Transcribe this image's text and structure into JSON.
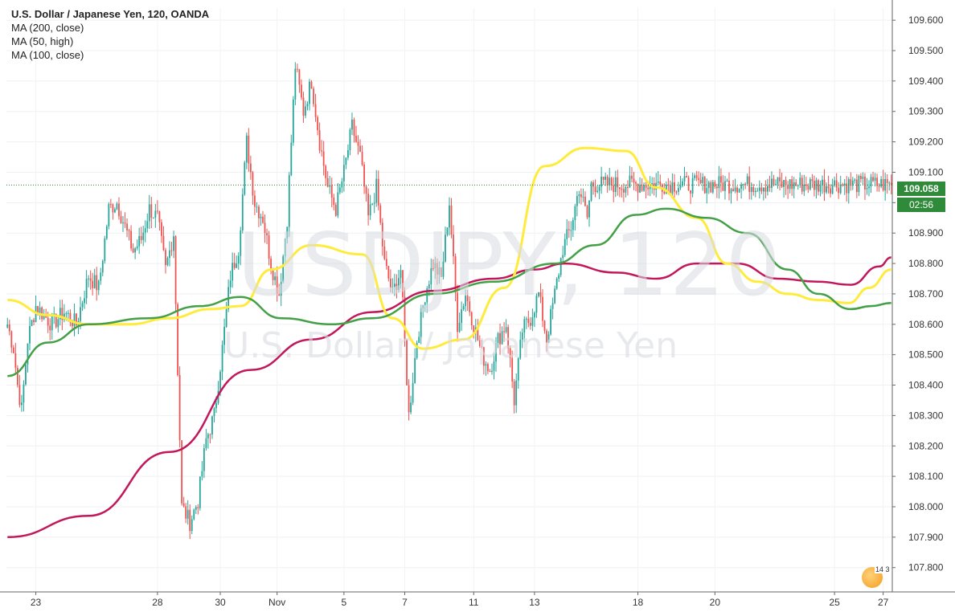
{
  "header": {
    "title": "U.S. Dollar / Japanese Yen, 120, OANDA",
    "studies": [
      "MA (200, close)",
      "MA (50, high)",
      "MA (100, close)"
    ]
  },
  "watermark": {
    "symbol": "USDJPY, 120",
    "name": "U.S. Dollar / Japanese Yen"
  },
  "price_tag": {
    "value": "109.058",
    "countdown": "02:56"
  },
  "colors": {
    "up": "#26a69a",
    "down": "#ef5350",
    "ma200": "#c2185b",
    "ma50": "#ffeb3b",
    "ma100": "#43a047",
    "price_line": "#2f8a3a"
  },
  "logo": {
    "badge": "14 3",
    "icon": "tradingview-flag-icon"
  },
  "chart_data": {
    "type": "candlestick",
    "ylim": [
      107.72,
      109.64
    ],
    "yticks": [
      "109.600",
      "109.500",
      "109.400",
      "109.300",
      "109.200",
      "109.100",
      "109.000",
      "108.900",
      "108.800",
      "108.700",
      "108.600",
      "108.500",
      "108.400",
      "108.300",
      "108.200",
      "108.100",
      "108.000",
      "107.900",
      "107.800"
    ],
    "xtick_labels": [
      "23",
      "28",
      "30",
      "Nov",
      "5",
      "7",
      "11",
      "13",
      "18",
      "20",
      "25",
      "27"
    ],
    "last_price": 109.058,
    "anchors": [
      {
        "i": 0,
        "p": 108.6
      },
      {
        "i": 3,
        "p": 108.52
      },
      {
        "i": 5,
        "p": 108.4
      },
      {
        "i": 7,
        "p": 108.32
      },
      {
        "i": 10,
        "p": 108.55
      },
      {
        "i": 14,
        "p": 108.66
      },
      {
        "i": 18,
        "p": 108.63
      },
      {
        "i": 22,
        "p": 108.6
      },
      {
        "i": 28,
        "p": 108.64
      },
      {
        "i": 34,
        "p": 108.6
      },
      {
        "i": 40,
        "p": 108.76
      },
      {
        "i": 45,
        "p": 108.72
      },
      {
        "i": 50,
        "p": 108.98
      },
      {
        "i": 54,
        "p": 109.0
      },
      {
        "i": 58,
        "p": 108.92
      },
      {
        "i": 62,
        "p": 108.84
      },
      {
        "i": 66,
        "p": 108.88
      },
      {
        "i": 70,
        "p": 108.98
      },
      {
        "i": 74,
        "p": 108.95
      },
      {
        "i": 78,
        "p": 108.78
      },
      {
        "i": 82,
        "p": 108.9
      },
      {
        "i": 86,
        "p": 108.0
      },
      {
        "i": 90,
        "p": 107.95
      },
      {
        "i": 94,
        "p": 108.02
      },
      {
        "i": 98,
        "p": 108.22
      },
      {
        "i": 102,
        "p": 108.3
      },
      {
        "i": 106,
        "p": 108.52
      },
      {
        "i": 110,
        "p": 108.76
      },
      {
        "i": 114,
        "p": 108.85
      },
      {
        "i": 118,
        "p": 109.2
      },
      {
        "i": 122,
        "p": 109.0
      },
      {
        "i": 126,
        "p": 108.95
      },
      {
        "i": 130,
        "p": 108.8
      },
      {
        "i": 134,
        "p": 108.7
      },
      {
        "i": 138,
        "p": 108.95
      },
      {
        "i": 142,
        "p": 109.45
      },
      {
        "i": 146,
        "p": 109.3
      },
      {
        "i": 150,
        "p": 109.4
      },
      {
        "i": 154,
        "p": 109.2
      },
      {
        "i": 158,
        "p": 109.05
      },
      {
        "i": 162,
        "p": 108.98
      },
      {
        "i": 166,
        "p": 109.1
      },
      {
        "i": 170,
        "p": 109.25
      },
      {
        "i": 174,
        "p": 109.15
      },
      {
        "i": 178,
        "p": 108.95
      },
      {
        "i": 182,
        "p": 109.05
      },
      {
        "i": 186,
        "p": 108.8
      },
      {
        "i": 190,
        "p": 108.7
      },
      {
        "i": 194,
        "p": 108.78
      },
      {
        "i": 198,
        "p": 108.3
      },
      {
        "i": 202,
        "p": 108.55
      },
      {
        "i": 206,
        "p": 108.7
      },
      {
        "i": 210,
        "p": 108.8
      },
      {
        "i": 214,
        "p": 108.75
      },
      {
        "i": 218,
        "p": 109.0
      },
      {
        "i": 222,
        "p": 108.6
      },
      {
        "i": 226,
        "p": 108.7
      },
      {
        "i": 230,
        "p": 108.6
      },
      {
        "i": 234,
        "p": 108.5
      },
      {
        "i": 238,
        "p": 108.45
      },
      {
        "i": 242,
        "p": 108.55
      },
      {
        "i": 246,
        "p": 108.6
      },
      {
        "i": 250,
        "p": 108.35
      },
      {
        "i": 254,
        "p": 108.58
      },
      {
        "i": 258,
        "p": 108.62
      },
      {
        "i": 262,
        "p": 108.7
      },
      {
        "i": 266,
        "p": 108.55
      },
      {
        "i": 270,
        "p": 108.7
      },
      {
        "i": 274,
        "p": 108.85
      },
      {
        "i": 278,
        "p": 108.92
      },
      {
        "i": 282,
        "p": 109.05
      },
      {
        "i": 286,
        "p": 108.95
      },
      {
        "i": 288,
        "p": 109.06
      }
    ],
    "series": [
      {
        "name": "MA (200, close)",
        "values": [
          [
            0,
            107.9
          ],
          [
            40,
            107.97
          ],
          [
            80,
            108.18
          ],
          [
            120,
            108.45
          ],
          [
            150,
            108.55
          ],
          [
            180,
            108.64
          ],
          [
            210,
            108.71
          ],
          [
            240,
            108.75
          ],
          [
            260,
            108.78
          ],
          [
            275,
            108.8
          ],
          [
            300,
            108.77
          ],
          [
            320,
            108.75
          ],
          [
            340,
            108.8
          ],
          [
            360,
            108.8
          ],
          [
            380,
            108.75
          ],
          [
            400,
            108.74
          ],
          [
            416,
            108.73
          ],
          [
            430,
            108.79
          ],
          [
            436,
            108.82
          ]
        ]
      },
      {
        "name": "MA (50, high)",
        "values": [
          [
            0,
            108.68
          ],
          [
            20,
            108.63
          ],
          [
            40,
            108.6
          ],
          [
            60,
            108.6
          ],
          [
            80,
            108.62
          ],
          [
            100,
            108.65
          ],
          [
            115,
            108.66
          ],
          [
            130,
            108.78
          ],
          [
            150,
            108.86
          ],
          [
            175,
            108.83
          ],
          [
            190,
            108.62
          ],
          [
            205,
            108.52
          ],
          [
            225,
            108.55
          ],
          [
            245,
            108.72
          ],
          [
            265,
            109.12
          ],
          [
            285,
            109.18
          ],
          [
            305,
            109.17
          ],
          [
            320,
            109.05
          ],
          [
            340,
            108.95
          ],
          [
            355,
            108.8
          ],
          [
            370,
            108.74
          ],
          [
            385,
            108.7
          ],
          [
            400,
            108.68
          ],
          [
            415,
            108.67
          ],
          [
            425,
            108.72
          ],
          [
            436,
            108.78
          ]
        ]
      },
      {
        "name": "MA (100, close)",
        "values": [
          [
            0,
            108.43
          ],
          [
            20,
            108.54
          ],
          [
            40,
            108.6
          ],
          [
            70,
            108.62
          ],
          [
            95,
            108.66
          ],
          [
            115,
            108.69
          ],
          [
            135,
            108.62
          ],
          [
            160,
            108.6
          ],
          [
            180,
            108.62
          ],
          [
            210,
            108.7
          ],
          [
            240,
            108.74
          ],
          [
            270,
            108.8
          ],
          [
            290,
            108.86
          ],
          [
            310,
            108.96
          ],
          [
            325,
            108.98
          ],
          [
            345,
            108.95
          ],
          [
            365,
            108.9
          ],
          [
            385,
            108.78
          ],
          [
            400,
            108.7
          ],
          [
            416,
            108.65
          ],
          [
            426,
            108.66
          ],
          [
            436,
            108.67
          ]
        ]
      }
    ]
  }
}
